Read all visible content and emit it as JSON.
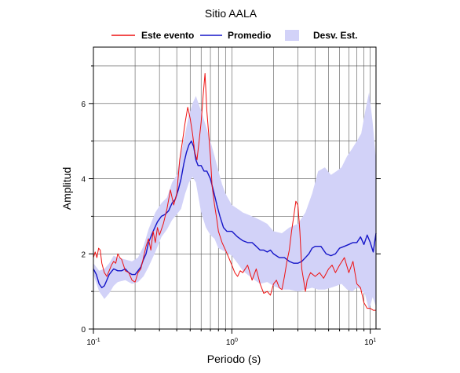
{
  "chart_data": {
    "type": "line",
    "title": "Sitio AALA",
    "xlabel": "Periodo (s)",
    "ylabel": "Amplitud",
    "xscale": "log",
    "xlim": [
      0.1,
      11
    ],
    "ylim": [
      0,
      7.5
    ],
    "x_ticks": [
      {
        "base": "10",
        "exp": "-1",
        "value": 0.1
      },
      {
        "base": "10",
        "exp": "0",
        "value": 1
      },
      {
        "base": "10",
        "exp": "1",
        "value": 10
      }
    ],
    "y_ticks": [
      0,
      2,
      4,
      6
    ],
    "grid": true,
    "legend": {
      "position": "top",
      "entries": [
        "Este evento",
        "Promedio",
        "Desv. Est."
      ]
    },
    "colors": {
      "event": "#ee1111",
      "mean": "#1515c8",
      "band": "#d2d2f8"
    },
    "series": [
      {
        "name": "Este evento",
        "x": [
          0.1,
          0.103,
          0.106,
          0.109,
          0.112,
          0.115,
          0.12,
          0.125,
          0.13,
          0.135,
          0.14,
          0.145,
          0.15,
          0.155,
          0.16,
          0.165,
          0.17,
          0.18,
          0.19,
          0.2,
          0.21,
          0.22,
          0.23,
          0.24,
          0.25,
          0.26,
          0.27,
          0.28,
          0.29,
          0.3,
          0.32,
          0.34,
          0.36,
          0.38,
          0.4,
          0.42,
          0.44,
          0.46,
          0.48,
          0.5,
          0.52,
          0.54,
          0.56,
          0.58,
          0.6,
          0.62,
          0.64,
          0.66,
          0.68,
          0.7,
          0.72,
          0.75,
          0.78,
          0.8,
          0.85,
          0.9,
          0.95,
          1.0,
          1.05,
          1.1,
          1.15,
          1.2,
          1.3,
          1.4,
          1.5,
          1.6,
          1.7,
          1.8,
          1.9,
          2.0,
          2.1,
          2.2,
          2.3,
          2.4,
          2.5,
          2.6,
          2.7,
          2.8,
          2.9,
          3.0,
          3.1,
          3.2,
          3.3,
          3.4,
          3.5,
          3.7,
          4.0,
          4.3,
          4.6,
          5.0,
          5.3,
          5.6,
          6.0,
          6.5,
          7.0,
          7.5,
          8.0,
          8.5,
          9.0,
          9.5,
          10.0,
          10.5,
          11.0
        ],
        "y": [
          1.9,
          2.05,
          1.9,
          2.15,
          2.1,
          1.75,
          1.5,
          1.4,
          1.55,
          1.7,
          1.8,
          1.75,
          2.0,
          1.9,
          1.85,
          1.7,
          1.55,
          1.5,
          1.3,
          1.25,
          1.5,
          1.6,
          1.9,
          2.2,
          2.4,
          2.1,
          2.6,
          2.3,
          2.7,
          2.5,
          2.8,
          3.2,
          3.7,
          3.3,
          3.6,
          4.5,
          5.0,
          5.5,
          5.9,
          5.6,
          5.2,
          4.7,
          4.5,
          5.0,
          5.5,
          6.2,
          6.8,
          5.8,
          5.2,
          4.6,
          3.8,
          3.3,
          2.9,
          2.6,
          2.3,
          2.1,
          1.9,
          1.7,
          1.5,
          1.4,
          1.55,
          1.5,
          1.7,
          1.3,
          1.6,
          1.2,
          0.95,
          1.0,
          0.9,
          1.2,
          1.3,
          1.1,
          1.05,
          1.4,
          1.8,
          2.1,
          2.6,
          3.0,
          3.4,
          3.3,
          2.6,
          1.6,
          1.3,
          1.0,
          1.3,
          1.5,
          1.4,
          1.5,
          1.35,
          1.6,
          1.7,
          1.5,
          1.7,
          1.9,
          1.5,
          1.8,
          1.2,
          1.1,
          0.7,
          0.55,
          0.55,
          0.5,
          0.5
        ]
      },
      {
        "name": "Promedio",
        "x": [
          0.1,
          0.105,
          0.11,
          0.115,
          0.12,
          0.125,
          0.13,
          0.14,
          0.15,
          0.16,
          0.17,
          0.18,
          0.19,
          0.2,
          0.21,
          0.22,
          0.23,
          0.24,
          0.25,
          0.27,
          0.29,
          0.31,
          0.33,
          0.35,
          0.37,
          0.39,
          0.41,
          0.43,
          0.45,
          0.47,
          0.49,
          0.51,
          0.53,
          0.55,
          0.57,
          0.6,
          0.63,
          0.66,
          0.7,
          0.74,
          0.78,
          0.82,
          0.87,
          0.92,
          1.0,
          1.1,
          1.2,
          1.3,
          1.4,
          1.5,
          1.6,
          1.7,
          1.8,
          1.9,
          2.0,
          2.2,
          2.4,
          2.6,
          2.8,
          3.0,
          3.2,
          3.4,
          3.6,
          3.8,
          4.0,
          4.4,
          4.8,
          5.2,
          5.6,
          6.0,
          6.5,
          7.0,
          7.5,
          8.0,
          8.5,
          9.0,
          9.5,
          10.0,
          10.5,
          11.0
        ],
        "y": [
          1.6,
          1.45,
          1.2,
          1.1,
          1.15,
          1.3,
          1.45,
          1.6,
          1.55,
          1.55,
          1.6,
          1.5,
          1.45,
          1.45,
          1.55,
          1.65,
          1.85,
          2.0,
          2.3,
          2.6,
          2.85,
          3.0,
          3.05,
          3.15,
          3.35,
          3.45,
          3.7,
          4.0,
          4.4,
          4.7,
          4.9,
          5.0,
          4.85,
          4.5,
          4.35,
          4.35,
          4.2,
          4.2,
          4.0,
          3.65,
          3.3,
          3.0,
          2.7,
          2.6,
          2.6,
          2.45,
          2.35,
          2.3,
          2.3,
          2.2,
          2.1,
          2.1,
          2.05,
          2.1,
          2.0,
          1.9,
          1.9,
          1.8,
          1.75,
          1.75,
          1.8,
          1.9,
          2.0,
          2.15,
          2.2,
          2.2,
          2.0,
          1.95,
          2.0,
          2.15,
          2.2,
          2.25,
          2.3,
          2.3,
          2.45,
          2.25,
          2.5,
          2.3,
          2.05,
          2.55
        ]
      }
    ],
    "band": {
      "name": "Desv. Est.",
      "x": [
        0.1,
        0.11,
        0.12,
        0.13,
        0.14,
        0.15,
        0.17,
        0.19,
        0.21,
        0.23,
        0.25,
        0.28,
        0.31,
        0.34,
        0.37,
        0.4,
        0.43,
        0.46,
        0.49,
        0.52,
        0.55,
        0.6,
        0.65,
        0.7,
        0.75,
        0.8,
        0.85,
        0.9,
        1.0,
        1.1,
        1.2,
        1.4,
        1.6,
        1.8,
        2.0,
        2.3,
        2.6,
        3.0,
        3.4,
        3.8,
        4.2,
        4.7,
        5.2,
        5.7,
        6.2,
        6.8,
        7.4,
        8.0,
        8.6,
        9.2,
        9.8,
        10.4,
        11.0
      ],
      "upper": [
        1.75,
        1.55,
        1.6,
        1.75,
        1.95,
        1.9,
        1.85,
        1.8,
        1.9,
        2.2,
        2.65,
        3.1,
        3.35,
        3.5,
        3.9,
        4.1,
        4.7,
        5.2,
        5.7,
        6.0,
        6.2,
        5.8,
        5.4,
        5.0,
        4.6,
        4.2,
        3.85,
        3.6,
        3.3,
        3.2,
        3.1,
        3.0,
        2.9,
        2.8,
        2.6,
        2.55,
        2.7,
        2.8,
        3.1,
        3.6,
        4.2,
        4.3,
        4.1,
        4.2,
        4.3,
        4.6,
        4.8,
        5.0,
        5.2,
        5.8,
        6.3,
        5.5,
        4.5
      ],
      "lower": [
        1.45,
        1.0,
        0.8,
        0.95,
        1.15,
        1.25,
        1.3,
        1.2,
        1.25,
        1.4,
        1.65,
        2.05,
        2.45,
        2.65,
        2.9,
        3.05,
        3.2,
        3.6,
        3.9,
        4.05,
        3.9,
        3.1,
        2.7,
        2.5,
        2.4,
        2.15,
        2.1,
        2.05,
        1.95,
        1.75,
        1.55,
        1.35,
        1.2,
        1.25,
        1.15,
        1.05,
        1.05,
        1.0,
        1.05,
        1.1,
        1.05,
        1.05,
        1.1,
        1.15,
        1.2,
        1.05,
        1.0,
        1.1,
        1.05,
        0.9,
        0.5,
        0.85,
        0.6
      ]
    }
  }
}
